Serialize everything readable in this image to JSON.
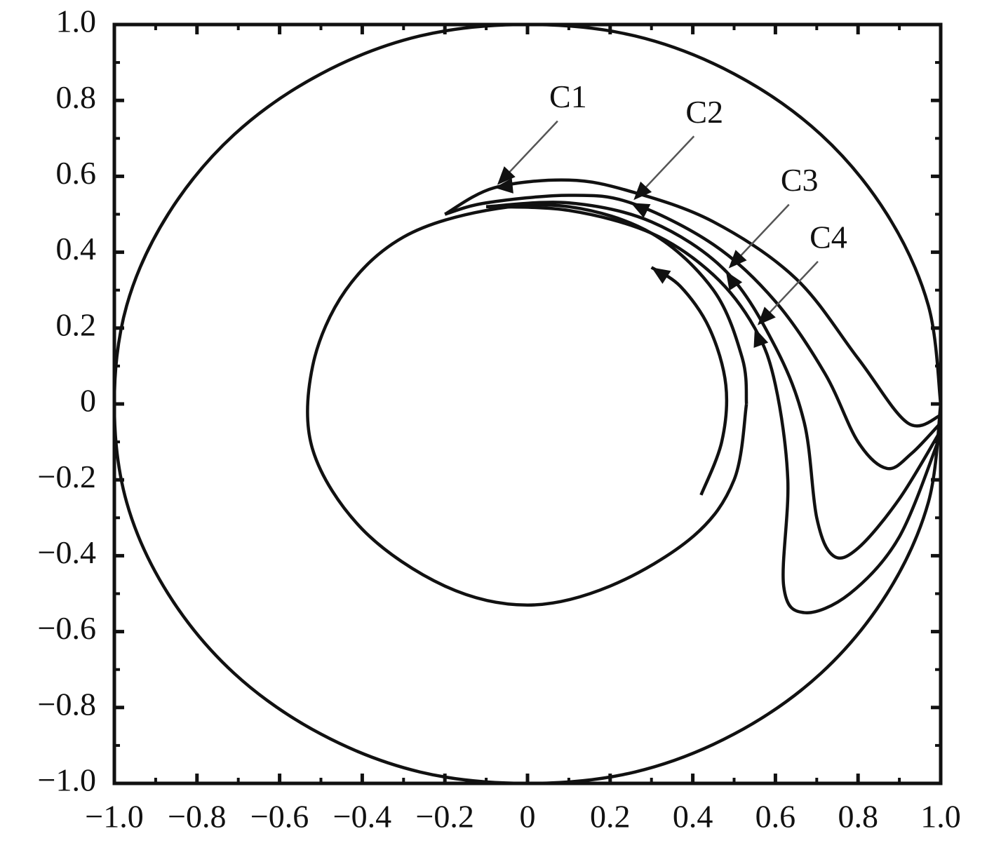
{
  "chart_data": {
    "type": "line",
    "xlim": [
      -1,
      1
    ],
    "ylim": [
      -1,
      1
    ],
    "xticks": [
      {
        "value": -1,
        "label": "−1.0"
      },
      {
        "value": -0.8,
        "label": "−0.8"
      },
      {
        "value": -0.6,
        "label": "−0.6"
      },
      {
        "value": -0.4,
        "label": "−0.4"
      },
      {
        "value": -0.2,
        "label": "−0.2"
      },
      0,
      0.2,
      0.4,
      0.6,
      0.8,
      {
        "value": 1,
        "label": "1.0"
      }
    ],
    "yticks": [
      {
        "value": -1,
        "label": "−1.0"
      },
      {
        "value": -0.8,
        "label": "−0.8"
      },
      {
        "value": -0.6,
        "label": "−0.6"
      },
      {
        "value": -0.4,
        "label": "−0.4"
      },
      {
        "value": -0.2,
        "label": "−0.2"
      },
      0,
      0.2,
      0.4,
      0.6,
      0.8,
      {
        "value": 1,
        "label": "1.0"
      }
    ],
    "color": "#111111",
    "series": [
      {
        "x": [
          1,
          0.97,
          0.87,
          0.71,
          0.5,
          0.26,
          0,
          -0.26,
          -0.5,
          -0.71,
          -0.87,
          -0.97,
          -1,
          -0.97,
          -0.87,
          -0.71,
          -0.5,
          -0.26,
          0,
          0.26,
          0.5,
          0.71,
          0.87,
          0.97,
          1
        ],
        "y": [
          0,
          0.26,
          0.5,
          0.71,
          0.87,
          0.97,
          1,
          0.97,
          0.87,
          0.71,
          0.5,
          0.26,
          0,
          -0.26,
          -0.5,
          -0.71,
          -0.87,
          -0.97,
          -1,
          -0.97,
          -0.87,
          -0.71,
          -0.5,
          -0.26,
          0
        ]
      },
      {
        "x": [
          0.53,
          0.5,
          0.4,
          0.2,
          0,
          -0.2,
          -0.4,
          -0.52,
          -0.52,
          -0.44,
          -0.3,
          -0.1,
          0.1,
          0.3,
          0.45,
          0.52,
          0.53
        ],
        "y": [
          0,
          -0.2,
          -0.35,
          -0.48,
          -0.53,
          -0.48,
          -0.33,
          -0.12,
          0.1,
          0.3,
          0.44,
          0.51,
          0.52,
          0.45,
          0.3,
          0.12,
          0
        ]
      },
      {
        "x": [
          0.42,
          0.47,
          0.48,
          0.44,
          0.37,
          0.3
        ],
        "y": [
          -0.24,
          -0.1,
          0.05,
          0.2,
          0.31,
          0.36
        ]
      },
      {
        "name": "C1",
        "x": [
          1,
          0.92,
          0.8,
          0.65,
          0.45,
          0.25,
          0.1,
          -0.08,
          -0.2
        ],
        "y": [
          -0.03,
          -0.05,
          0.12,
          0.33,
          0.48,
          0.56,
          0.59,
          0.57,
          0.5
        ]
      },
      {
        "name": "C2",
        "x": [
          1,
          0.93,
          0.87,
          0.8,
          0.72,
          0.6,
          0.45,
          0.25,
          0.1,
          -0.1,
          -0.2
        ],
        "y": [
          -0.05,
          -0.13,
          -0.17,
          -0.1,
          0.08,
          0.27,
          0.42,
          0.53,
          0.55,
          0.53,
          0.5
        ]
      },
      {
        "name": "C3",
        "x": [
          1,
          0.9,
          0.8,
          0.74,
          0.7,
          0.67,
          0.6,
          0.48,
          0.3,
          0.1,
          -0.1
        ],
        "y": [
          -0.07,
          -0.25,
          -0.38,
          -0.4,
          -0.3,
          -0.05,
          0.15,
          0.35,
          0.48,
          0.53,
          0.52
        ]
      },
      {
        "name": "C4",
        "x": [
          1,
          0.9,
          0.78,
          0.67,
          0.62,
          0.63,
          0.6,
          0.55,
          0.45,
          0.3,
          0.1,
          -0.1
        ],
        "y": [
          -0.08,
          -0.35,
          -0.5,
          -0.55,
          -0.48,
          -0.2,
          0.05,
          0.2,
          0.34,
          0.45,
          0.51,
          0.52
        ]
      }
    ]
  }
}
